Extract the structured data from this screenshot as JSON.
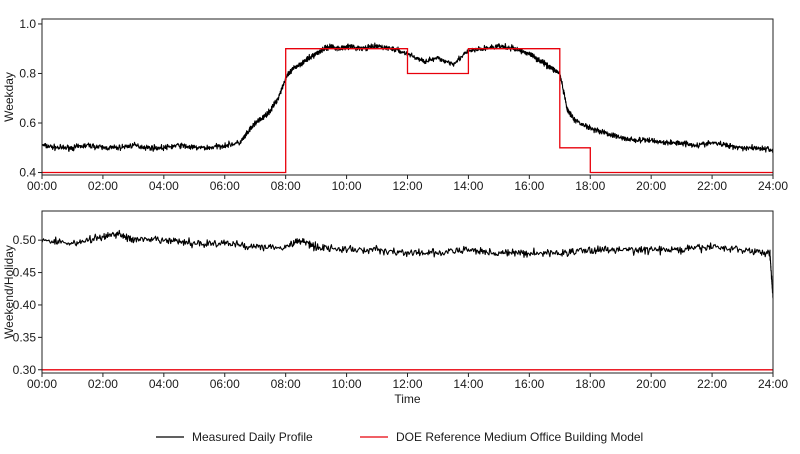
{
  "chart_data": [
    {
      "type": "line",
      "ylabel": "Weekday",
      "xlabel": "",
      "xlim": [
        0,
        24
      ],
      "ylim": [
        0.39,
        1.02
      ],
      "x_ticks": [
        0,
        2,
        4,
        6,
        8,
        10,
        12,
        14,
        16,
        18,
        20,
        22,
        24
      ],
      "x_tick_labels": [
        "00:00",
        "02:00",
        "04:00",
        "06:00",
        "08:00",
        "10:00",
        "12:00",
        "14:00",
        "16:00",
        "18:00",
        "20:00",
        "22:00",
        "24:00"
      ],
      "y_ticks": [
        0.4,
        0.6,
        0.8,
        1.0
      ],
      "y_tick_labels": [
        "0.4",
        "0.6",
        "0.8",
        "1.0"
      ],
      "grid": false,
      "series": [
        {
          "name": "Measured Daily Profile",
          "color": "#000000",
          "x": [
            0,
            0.5,
            1,
            1.5,
            2,
            2.5,
            3,
            3.5,
            4,
            4.5,
            5,
            5.5,
            6,
            6.5,
            6.75,
            7,
            7.25,
            7.5,
            7.75,
            8,
            8.25,
            8.5,
            8.75,
            9,
            9.25,
            9.5,
            9.75,
            10,
            10.5,
            11,
            11.5,
            12,
            12.5,
            13,
            13.5,
            14,
            14.5,
            15,
            15.5,
            16,
            16.25,
            16.5,
            16.75,
            17,
            17.25,
            17.5,
            18,
            18.5,
            19,
            19.5,
            20,
            20.5,
            21,
            21.5,
            22,
            22.5,
            23,
            23.5,
            24
          ],
          "y": [
            0.51,
            0.5,
            0.5,
            0.51,
            0.5,
            0.5,
            0.51,
            0.5,
            0.5,
            0.51,
            0.5,
            0.5,
            0.51,
            0.52,
            0.56,
            0.6,
            0.62,
            0.65,
            0.7,
            0.78,
            0.82,
            0.84,
            0.86,
            0.88,
            0.9,
            0.91,
            0.9,
            0.91,
            0.9,
            0.91,
            0.9,
            0.88,
            0.85,
            0.86,
            0.84,
            0.89,
            0.9,
            0.91,
            0.9,
            0.88,
            0.86,
            0.84,
            0.82,
            0.8,
            0.65,
            0.61,
            0.58,
            0.56,
            0.54,
            0.53,
            0.53,
            0.52,
            0.52,
            0.51,
            0.52,
            0.51,
            0.5,
            0.5,
            0.49
          ]
        },
        {
          "name": "DOE Reference Medium Office Building Model",
          "color": "#e8000b",
          "x": [
            0,
            8,
            8,
            12,
            12,
            14,
            14,
            17,
            17,
            18,
            18,
            24
          ],
          "y": [
            0.4,
            0.4,
            0.9,
            0.9,
            0.8,
            0.8,
            0.9,
            0.9,
            0.5,
            0.5,
            0.4,
            0.4
          ]
        }
      ]
    },
    {
      "type": "line",
      "ylabel": "Weekend/Holiday",
      "xlabel": "Time",
      "xlim": [
        0,
        24
      ],
      "ylim": [
        0.295,
        0.545
      ],
      "x_ticks": [
        0,
        2,
        4,
        6,
        8,
        10,
        12,
        14,
        16,
        18,
        20,
        22,
        24
      ],
      "x_tick_labels": [
        "00:00",
        "02:00",
        "04:00",
        "06:00",
        "08:00",
        "10:00",
        "12:00",
        "14:00",
        "16:00",
        "18:00",
        "20:00",
        "22:00",
        "24:00"
      ],
      "y_ticks": [
        0.3,
        0.35,
        0.4,
        0.45,
        0.5
      ],
      "y_tick_labels": [
        "0.30",
        "0.35",
        "0.40",
        "0.45",
        "0.50"
      ],
      "grid": false,
      "series": [
        {
          "name": "Measured Daily Profile",
          "color": "#000000",
          "x": [
            0,
            1,
            2,
            2.5,
            3,
            4,
            5,
            6,
            7,
            8,
            8.5,
            9,
            10,
            11,
            12,
            13,
            14,
            15,
            16,
            17,
            18,
            19,
            20,
            21,
            22,
            23,
            23.9,
            24
          ],
          "y": [
            0.5,
            0.495,
            0.505,
            0.51,
            0.5,
            0.5,
            0.495,
            0.495,
            0.49,
            0.49,
            0.5,
            0.49,
            0.485,
            0.485,
            0.48,
            0.48,
            0.485,
            0.48,
            0.48,
            0.48,
            0.485,
            0.485,
            0.485,
            0.485,
            0.49,
            0.485,
            0.48,
            0.41
          ]
        },
        {
          "name": "DOE Reference Medium Office Building Model",
          "color": "#e8000b",
          "x": [
            0,
            24
          ],
          "y": [
            0.3,
            0.3
          ]
        }
      ]
    }
  ],
  "legend": {
    "placement": "bottom-center",
    "items": [
      {
        "label": "Measured Daily Profile",
        "color": "#000000"
      },
      {
        "label": "DOE Reference Medium Office Building Model",
        "color": "#e8000b"
      }
    ]
  }
}
